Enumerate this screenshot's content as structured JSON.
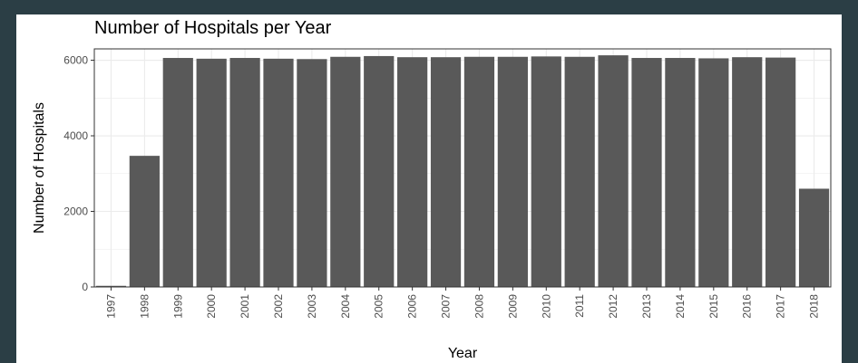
{
  "chart_data": {
    "type": "bar",
    "title": "Number of Hospitals per Year",
    "xlabel": "Year",
    "ylabel": "Number of Hospitals",
    "categories": [
      "1997",
      "1998",
      "1999",
      "2000",
      "2001",
      "2002",
      "2003",
      "2004",
      "2005",
      "2006",
      "2007",
      "2008",
      "2009",
      "2010",
      "2011",
      "2012",
      "2013",
      "2014",
      "2015",
      "2016",
      "2017",
      "2018"
    ],
    "values": [
      30,
      3470,
      6060,
      6040,
      6060,
      6040,
      6030,
      6090,
      6110,
      6080,
      6080,
      6090,
      6090,
      6100,
      6090,
      6130,
      6060,
      6060,
      6050,
      6080,
      6070,
      2600
    ],
    "ylim": [
      0,
      6300
    ],
    "yticks": [
      0,
      2000,
      4000,
      6000
    ],
    "grid": true,
    "bar_color": "#595959",
    "grid_color": "#ebebeb"
  }
}
